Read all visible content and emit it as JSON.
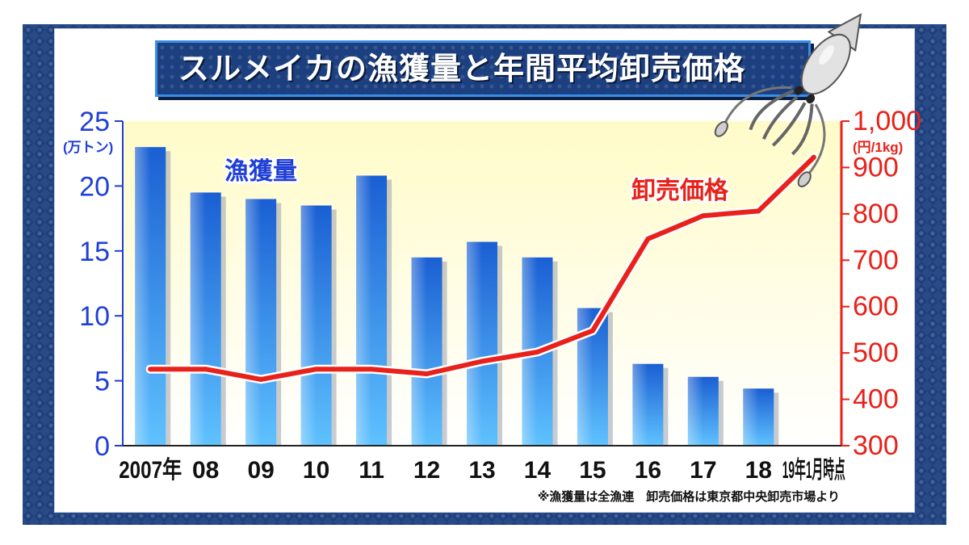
{
  "title": "スルメイカの漁獲量と年間平均卸売価格",
  "chart_data": {
    "type": "bar",
    "categories": [
      "2007年",
      "08",
      "09",
      "10",
      "11",
      "12",
      "13",
      "14",
      "15",
      "16",
      "17",
      "18",
      "19年1月時点"
    ],
    "series": [
      {
        "name": "漁獲量",
        "type": "bar",
        "axis": "left",
        "values": [
          23.0,
          19.5,
          19.0,
          18.5,
          20.8,
          14.5,
          15.7,
          14.5,
          10.6,
          6.3,
          5.3,
          4.4,
          null
        ]
      },
      {
        "name": "卸売価格",
        "type": "line",
        "axis": "right",
        "values": [
          465,
          465,
          443,
          465,
          465,
          455,
          482,
          502,
          548,
          746,
          796,
          806,
          922
        ]
      }
    ],
    "left_axis": {
      "unit": "(万トン)",
      "range": [
        0,
        25
      ],
      "ticks": [
        "0",
        "5",
        "10",
        "15",
        "20",
        "25"
      ]
    },
    "right_axis": {
      "unit": "(円/1kg)",
      "range": [
        300,
        1000
      ],
      "ticks": [
        "300",
        "400",
        "500",
        "600",
        "700",
        "800",
        "900",
        "1,000"
      ]
    },
    "colors": {
      "bar": "#2a7be0",
      "line": "#e8211a",
      "left_axis": "#1f3fd6",
      "right_axis": "#e8211a",
      "plot_bg": "#fdfbd0"
    },
    "source_note": "※漁獲量は全漁連　卸売価格は東京都中央卸売市場より"
  }
}
